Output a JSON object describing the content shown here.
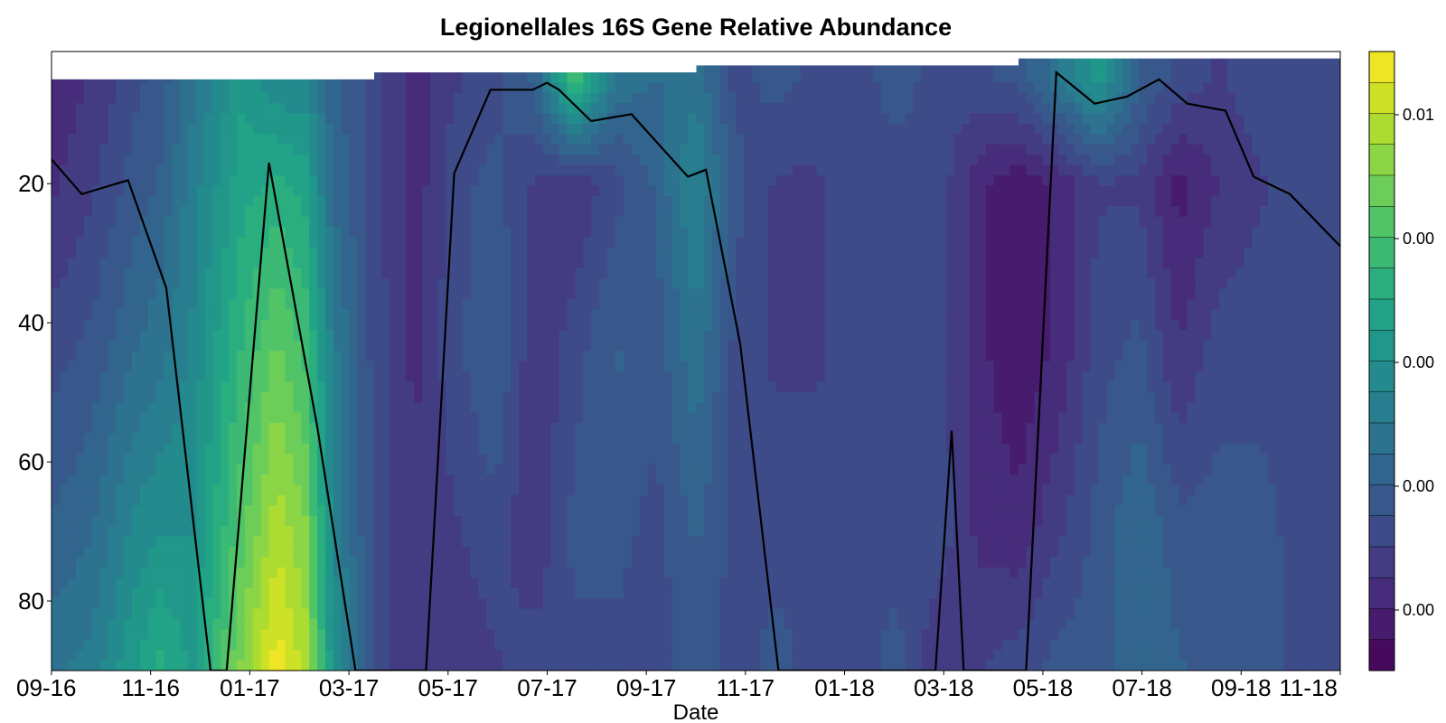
{
  "chart_data": {
    "type": "heatmap",
    "title": "Legionellales 16S Gene Relative Abundance",
    "xlabel": "Date",
    "ylabel": "",
    "x_ticks": [
      "09-16",
      "11-16",
      "01-17",
      "03-17",
      "05-17",
      "07-17",
      "09-17",
      "11-17",
      "01-18",
      "03-18",
      "05-18",
      "07-18",
      "09-18",
      "11-18"
    ],
    "y_ticks": [
      20,
      40,
      60,
      80
    ],
    "ylim": [
      90,
      1
    ],
    "y_axis_reversed": true,
    "colorbar": {
      "colormap": "viridis",
      "colors": [
        "#440154",
        "#482475",
        "#414487",
        "#355f8d",
        "#2a788e",
        "#21918c",
        "#22a884",
        "#44bf70",
        "#7ad151",
        "#bddf26",
        "#fde725"
      ],
      "tick_labels": [
        "0.00",
        "0.00",
        "0.00",
        "0.00",
        "0.00",
        "0.01"
      ],
      "levels": 20
    },
    "gap_top_depths": [
      {
        "from_month": 0,
        "to_month": 8,
        "depth": 5
      },
      {
        "from_month": 8,
        "to_month": 16,
        "depth": 4
      },
      {
        "from_month": 16,
        "to_month": 24,
        "depth": 3
      },
      {
        "from_month": 24,
        "to_month": 32,
        "depth": 2
      }
    ],
    "value_columns": [
      {
        "month": 0,
        "values": [
          0.0015,
          0.0018,
          0.003,
          0.004,
          0.005
        ]
      },
      {
        "month": 1,
        "values": [
          0.002,
          0.0025,
          0.0035,
          0.0045,
          0.0055
        ]
      },
      {
        "month": 2,
        "values": [
          0.003,
          0.0035,
          0.0045,
          0.006,
          0.007
        ]
      },
      {
        "month": 2.7,
        "values": [
          0.0035,
          0.004,
          0.005,
          0.0065,
          0.008
        ]
      },
      {
        "month": 3.5,
        "values": [
          0.005,
          0.0055,
          0.006,
          0.0065,
          0.007
        ]
      },
      {
        "month": 4.7,
        "values": [
          0.007,
          0.0075,
          0.0085,
          0.0095,
          0.0105
        ]
      },
      {
        "month": 5.6,
        "values": [
          0.006,
          0.008,
          0.01,
          0.0115,
          0.0128
        ]
      },
      {
        "month": 6.3,
        "values": [
          0.006,
          0.0075,
          0.009,
          0.0105,
          0.0115
        ]
      },
      {
        "month": 7.0,
        "values": [
          0.004,
          0.0045,
          0.0055,
          0.006,
          0.0065
        ]
      },
      {
        "month": 8.0,
        "values": [
          0.003,
          0.003,
          0.003,
          0.003,
          0.003
        ]
      },
      {
        "month": 9.0,
        "values": [
          0.0015,
          0.0015,
          0.0018,
          0.002,
          0.002
        ]
      },
      {
        "month": 10.0,
        "values": [
          0.0025,
          0.003,
          0.003,
          0.0025,
          0.002
        ]
      },
      {
        "month": 11.0,
        "values": [
          0.003,
          0.0035,
          0.004,
          0.003,
          0.0025
        ]
      },
      {
        "month": 12.0,
        "values": [
          0.004,
          0.0025,
          0.002,
          0.002,
          0.003
        ]
      },
      {
        "month": 13.0,
        "values": [
          0.009,
          0.002,
          0.003,
          0.0035,
          0.003
        ]
      },
      {
        "month": 14.0,
        "values": [
          0.005,
          0.003,
          0.004,
          0.0035,
          0.003
        ]
      },
      {
        "month": 15.0,
        "values": [
          0.0045,
          0.004,
          0.0035,
          0.003,
          0.003
        ]
      },
      {
        "month": 16.0,
        "values": [
          0.005,
          0.006,
          0.005,
          0.004,
          0.0035
        ]
      },
      {
        "month": 17.0,
        "values": [
          0.003,
          0.0035,
          0.003,
          0.003,
          0.003
        ]
      },
      {
        "month": 18.0,
        "values": [
          0.0035,
          0.0025,
          0.0025,
          0.003,
          0.0035
        ]
      },
      {
        "month": 19.0,
        "values": [
          0.003,
          0.0025,
          0.0025,
          0.003,
          0.003
        ]
      },
      {
        "month": 20.0,
        "values": [
          0.003,
          0.003,
          0.003,
          0.003,
          0.003
        ]
      },
      {
        "month": 21.0,
        "values": [
          0.0035,
          0.003,
          0.003,
          0.003,
          0.0035
        ]
      },
      {
        "month": 22.0,
        "values": [
          0.003,
          0.003,
          0.003,
          0.003,
          0.002
        ]
      },
      {
        "month": 23.0,
        "values": [
          0.003,
          0.0015,
          0.0015,
          0.0018,
          0.0025
        ]
      },
      {
        "month": 24.0,
        "values": [
          0.0035,
          0.0008,
          0.0008,
          0.0015,
          0.003
        ]
      },
      {
        "month": 25.0,
        "values": [
          0.005,
          0.0015,
          0.0015,
          0.0025,
          0.0035
        ]
      },
      {
        "month": 26.0,
        "values": [
          0.007,
          0.0025,
          0.003,
          0.0035,
          0.0035
        ]
      },
      {
        "month": 27.0,
        "values": [
          0.004,
          0.0025,
          0.0035,
          0.0045,
          0.0045
        ]
      },
      {
        "month": 28.0,
        "values": [
          0.003,
          0.001,
          0.002,
          0.0035,
          0.004
        ]
      },
      {
        "month": 29.0,
        "values": [
          0.0025,
          0.002,
          0.003,
          0.0035,
          0.0035
        ]
      },
      {
        "month": 30.0,
        "values": [
          0.003,
          0.0025,
          0.003,
          0.0035,
          0.0035
        ]
      },
      {
        "month": 31.0,
        "values": [
          0.003,
          0.003,
          0.003,
          0.003,
          0.003
        ]
      },
      {
        "month": 32.0,
        "values": [
          0.003,
          0.003,
          0.003,
          0.003,
          0.003
        ]
      }
    ],
    "value_depths": [
      5,
      20,
      45,
      70,
      90
    ],
    "line_series": [
      {
        "month": 0.0,
        "depth": 16.5
      },
      {
        "month": 0.75,
        "depth": 21.5
      },
      {
        "month": 1.9,
        "depth": 19.5
      },
      {
        "month": 2.85,
        "depth": 35.0
      },
      {
        "month": 3.95,
        "depth": 90.0
      },
      {
        "month": 4.35,
        "depth": 90.0
      },
      {
        "month": 5.4,
        "depth": 17.0
      },
      {
        "month": 6.6,
        "depth": 55.0
      },
      {
        "month": 7.55,
        "depth": 90.0
      },
      {
        "month": 9.3,
        "depth": 90.0
      },
      {
        "month": 10.0,
        "depth": 18.5
      },
      {
        "month": 10.9,
        "depth": 6.5
      },
      {
        "month": 11.95,
        "depth": 6.5
      },
      {
        "month": 12.3,
        "depth": 5.5
      },
      {
        "month": 12.6,
        "depth": 6.5
      },
      {
        "month": 13.4,
        "depth": 11.0
      },
      {
        "month": 14.4,
        "depth": 10.0
      },
      {
        "month": 15.8,
        "depth": 19.0
      },
      {
        "month": 16.25,
        "depth": 18.0
      },
      {
        "month": 17.1,
        "depth": 43.0
      },
      {
        "month": 18.05,
        "depth": 90.0
      },
      {
        "month": 21.95,
        "depth": 90.0
      },
      {
        "month": 22.35,
        "depth": 55.5
      },
      {
        "month": 22.65,
        "depth": 90.0
      },
      {
        "month": 24.2,
        "depth": 90.0
      },
      {
        "month": 24.95,
        "depth": 4.0
      },
      {
        "month": 25.9,
        "depth": 8.5
      },
      {
        "month": 26.7,
        "depth": 7.5
      },
      {
        "month": 27.5,
        "depth": 5.0
      },
      {
        "month": 28.2,
        "depth": 8.5
      },
      {
        "month": 29.15,
        "depth": 9.5
      },
      {
        "month": 29.85,
        "depth": 19.0
      },
      {
        "month": 30.75,
        "depth": 21.5
      },
      {
        "month": 32.0,
        "depth": 29.0
      }
    ]
  }
}
